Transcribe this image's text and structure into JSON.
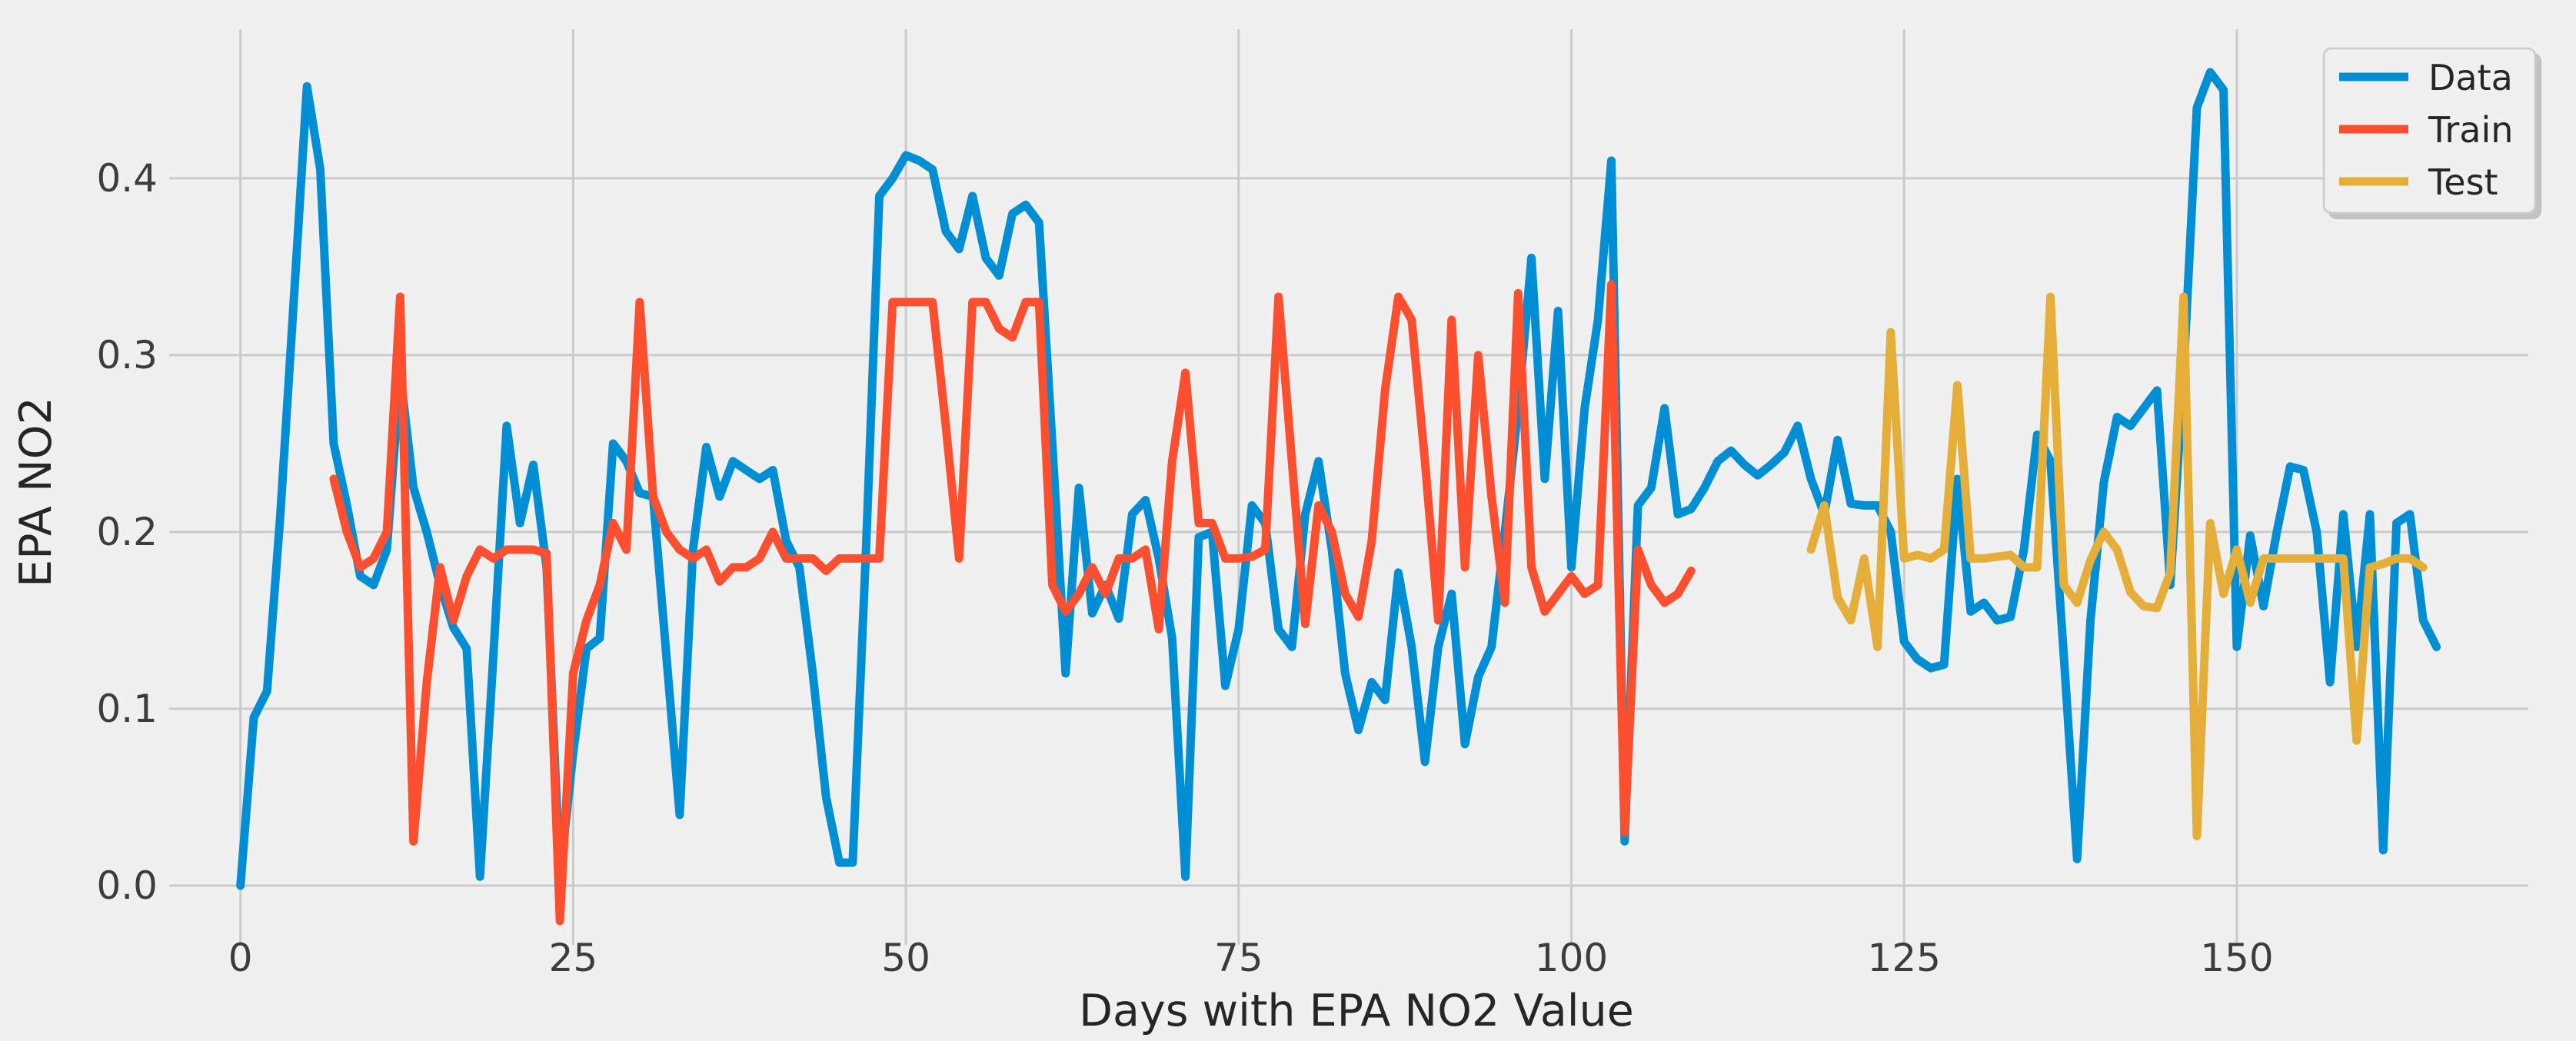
{
  "chart_data": {
    "type": "line",
    "title": "",
    "xlabel": "Days with EPA NO2 Value",
    "ylabel": "EPA NO2",
    "grid": true,
    "legend_position": "upper right",
    "xlim": [
      -4.2,
      171.9
    ],
    "ylim": [
      -0.0257,
      0.4843
    ],
    "x_tick_values": [
      0,
      25,
      50,
      75,
      100,
      125,
      150
    ],
    "x_tick_labels": [
      "0",
      "25",
      "50",
      "75",
      "100",
      "125",
      "150"
    ],
    "y_tick_values": [
      0.0,
      0.1,
      0.2,
      0.3,
      0.4
    ],
    "y_tick_labels": [
      "0.0",
      "0.1",
      "0.2",
      "0.3",
      "0.4"
    ],
    "colors": {
      "background": "#f0f0f0",
      "grid": "#cbcbcb",
      "text": "#3c3c3c",
      "data_blue": "#008fd5",
      "train_red": "#fc4f30",
      "test_gold": "#e5ae38"
    },
    "series": [
      {
        "name": "Data",
        "color": "#008fd5",
        "x_start": 0,
        "values": [
          0.0,
          0.095,
          0.11,
          0.21,
          0.33,
          0.452,
          0.405,
          0.25,
          0.215,
          0.175,
          0.17,
          0.19,
          0.29,
          0.225,
          0.2,
          0.17,
          0.146,
          0.134,
          0.005,
          0.13,
          0.26,
          0.205,
          0.238,
          0.18,
          0.005,
          0.075,
          0.134,
          0.14,
          0.25,
          0.24,
          0.222,
          0.22,
          0.13,
          0.04,
          0.19,
          0.248,
          0.22,
          0.24,
          0.235,
          0.23,
          0.235,
          0.195,
          0.18,
          0.12,
          0.05,
          0.013,
          0.013,
          0.19,
          0.39,
          0.4,
          0.413,
          0.41,
          0.405,
          0.37,
          0.36,
          0.39,
          0.355,
          0.345,
          0.38,
          0.385,
          0.375,
          0.25,
          0.12,
          0.225,
          0.154,
          0.17,
          0.151,
          0.21,
          0.218,
          0.185,
          0.14,
          0.005,
          0.197,
          0.2,
          0.113,
          0.145,
          0.215,
          0.205,
          0.145,
          0.135,
          0.21,
          0.24,
          0.19,
          0.12,
          0.088,
          0.115,
          0.105,
          0.177,
          0.135,
          0.07,
          0.135,
          0.165,
          0.08,
          0.118,
          0.135,
          0.2,
          0.27,
          0.355,
          0.23,
          0.325,
          0.18,
          0.27,
          0.32,
          0.41,
          0.025,
          0.215,
          0.225,
          0.27,
          0.21,
          0.213,
          0.225,
          0.24,
          0.246,
          0.238,
          0.232,
          0.238,
          0.245,
          0.26,
          0.23,
          0.21,
          0.252,
          0.216,
          0.215,
          0.215,
          0.2,
          0.138,
          0.128,
          0.123,
          0.125,
          0.23,
          0.155,
          0.16,
          0.15,
          0.152,
          0.19,
          0.255,
          0.24,
          0.13,
          0.015,
          0.15,
          0.228,
          0.265,
          0.26,
          0.27,
          0.28,
          0.17,
          0.29,
          0.44,
          0.46,
          0.45,
          0.135,
          0.198,
          0.158,
          0.2,
          0.237,
          0.235,
          0.2,
          0.115,
          0.21,
          0.135,
          0.21,
          0.02,
          0.205,
          0.21,
          0.15,
          0.135
        ]
      },
      {
        "name": "Train",
        "color": "#fc4f30",
        "x_start": 7,
        "values": [
          0.23,
          0.2,
          0.18,
          0.185,
          0.2,
          0.333,
          0.025,
          0.115,
          0.18,
          0.15,
          0.175,
          0.19,
          0.185,
          0.19,
          0.19,
          0.19,
          0.188,
          -0.02,
          0.12,
          0.15,
          0.17,
          0.205,
          0.19,
          0.33,
          0.22,
          0.2,
          0.19,
          0.185,
          0.19,
          0.172,
          0.18,
          0.18,
          0.185,
          0.2,
          0.185,
          0.185,
          0.185,
          0.178,
          0.185,
          0.185,
          0.185,
          0.185,
          0.33,
          0.33,
          0.33,
          0.33,
          0.26,
          0.185,
          0.33,
          0.33,
          0.315,
          0.31,
          0.33,
          0.33,
          0.17,
          0.155,
          0.165,
          0.18,
          0.165,
          0.185,
          0.185,
          0.19,
          0.145,
          0.24,
          0.29,
          0.205,
          0.205,
          0.185,
          0.185,
          0.186,
          0.19,
          0.333,
          0.24,
          0.148,
          0.215,
          0.2,
          0.165,
          0.152,
          0.195,
          0.28,
          0.333,
          0.32,
          0.24,
          0.15,
          0.32,
          0.18,
          0.3,
          0.22,
          0.16,
          0.335,
          0.18,
          0.155,
          0.165,
          0.175,
          0.165,
          0.17,
          0.34,
          0.03,
          0.19,
          0.17,
          0.16,
          0.165,
          0.178
        ]
      },
      {
        "name": "Test",
        "color": "#e5ae38",
        "x_start": 118,
        "values": [
          0.19,
          0.215,
          0.163,
          0.15,
          0.185,
          0.135,
          0.313,
          0.185,
          0.187,
          0.185,
          0.19,
          0.283,
          0.185,
          0.185,
          0.186,
          0.187,
          0.18,
          0.18,
          0.333,
          0.17,
          0.16,
          0.184,
          0.2,
          0.19,
          0.166,
          0.158,
          0.157,
          0.177,
          0.333,
          0.028,
          0.205,
          0.165,
          0.19,
          0.16,
          0.185,
          0.185,
          0.185,
          0.185,
          0.185,
          0.185,
          0.185,
          0.082,
          0.18,
          0.182,
          0.185,
          0.185,
          0.18
        ]
      }
    ],
    "legend": {
      "items": [
        {
          "label": "Data",
          "color": "#008fd5"
        },
        {
          "label": "Train",
          "color": "#fc4f30"
        },
        {
          "label": "Test",
          "color": "#e5ae38"
        }
      ]
    }
  }
}
